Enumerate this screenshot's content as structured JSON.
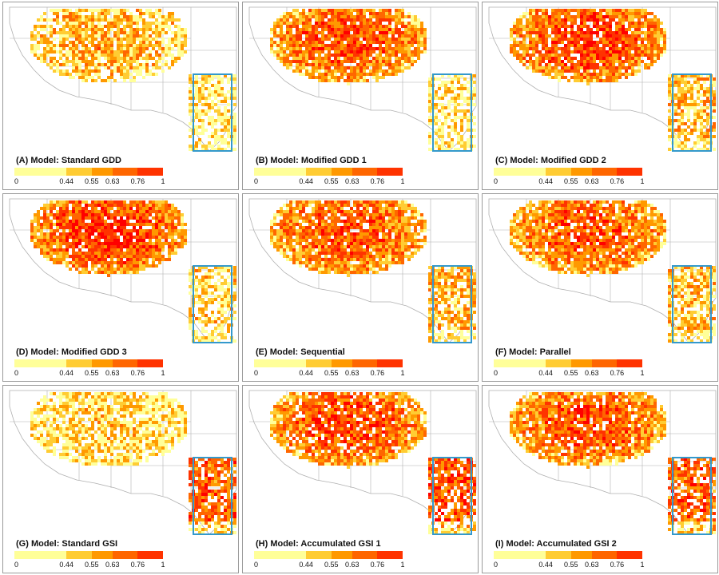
{
  "panels": [
    {
      "title": "(A) Model: Standard GDD",
      "intensity": 0.35,
      "texas": 0.15
    },
    {
      "title": "(B) Model: Modified GDD 1",
      "intensity": 0.62,
      "texas": 0.2
    },
    {
      "title": "(C) Model: Modified GDD 2",
      "intensity": 0.68,
      "texas": 0.3
    },
    {
      "title": "(D) Model: Modified GDD 3",
      "intensity": 0.72,
      "texas": 0.25
    },
    {
      "title": "(E) Model: Sequential",
      "intensity": 0.6,
      "texas": 0.35
    },
    {
      "title": "(F) Model: Parallel",
      "intensity": 0.6,
      "texas": 0.3
    },
    {
      "title": "(G) Model: Standard GSI",
      "intensity": 0.22,
      "texas": 0.6
    },
    {
      "title": "(H) Model: Accumulated GSI 1",
      "intensity": 0.65,
      "texas": 0.65
    },
    {
      "title": "(I) Model: Accumulated GSI 2",
      "intensity": 0.62,
      "texas": 0.6
    }
  ],
  "legend": {
    "colors": [
      "#ffff99",
      "#ffcc33",
      "#ff9900",
      "#ff6600",
      "#ff3300",
      "#ff0000"
    ],
    "ticks": [
      "0",
      "0.44",
      "0.55",
      "0.63",
      "0.76",
      "1"
    ]
  },
  "colors": {
    "background": "#ffffff",
    "state_lines": "#b0b0b0",
    "highlight_box": "#3399cc"
  }
}
